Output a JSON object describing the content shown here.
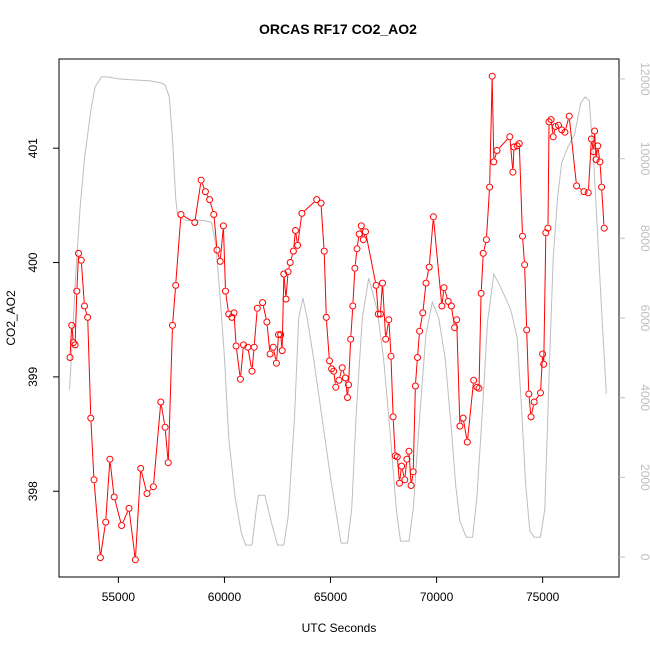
{
  "chart_data": {
    "type": "line",
    "title": "ORCAS RF17 CO2_AO2",
    "xlabel": "UTC Seconds",
    "ylabel": "CO2_AO2",
    "xlim": [
      52200,
      78600
    ],
    "ylim": [
      397.25,
      401.78
    ],
    "x_ticks": [
      55000,
      60000,
      65000,
      70000,
      75000
    ],
    "y_ticks": [
      398,
      399,
      400,
      401
    ],
    "y2lim": [
      -500,
      12500
    ],
    "y2_ticks": [
      0,
      2000,
      4000,
      6000,
      8000,
      10000,
      12000
    ],
    "grid": false,
    "legend": "none",
    "colors": {
      "primary": "#ff0000",
      "secondary": "#bebebe"
    },
    "series": [
      {
        "axis": "left",
        "points": [
          [
            52720,
            399.17
          ],
          [
            52800,
            399.45
          ],
          [
            52880,
            399.3
          ],
          [
            52960,
            399.28
          ],
          [
            53040,
            399.75
          ],
          [
            53120,
            400.08
          ],
          [
            53250,
            400.02
          ],
          [
            53400,
            399.62
          ],
          [
            53550,
            399.52
          ],
          [
            53700,
            398.64
          ],
          [
            53850,
            398.1
          ],
          [
            54150,
            397.42
          ],
          [
            54400,
            397.73
          ],
          [
            54600,
            398.28
          ],
          [
            54800,
            397.95
          ],
          [
            55150,
            397.7
          ],
          [
            55500,
            397.85
          ],
          [
            55800,
            397.4
          ],
          [
            56050,
            398.2
          ],
          [
            56350,
            397.98
          ],
          [
            56650,
            398.04
          ],
          [
            57000,
            398.78
          ],
          [
            57200,
            398.56
          ],
          [
            57350,
            398.25
          ],
          [
            57550,
            399.45
          ],
          [
            57700,
            399.8
          ],
          [
            57950,
            400.42
          ],
          [
            58600,
            400.35
          ],
          [
            58900,
            400.72
          ],
          [
            59100,
            400.62
          ],
          [
            59300,
            400.55
          ],
          [
            59500,
            400.42
          ],
          [
            59650,
            400.11
          ],
          [
            59800,
            400.01
          ],
          [
            59950,
            400.32
          ],
          [
            60050,
            399.75
          ],
          [
            60200,
            399.55
          ],
          [
            60350,
            399.52
          ],
          [
            60450,
            399.56
          ],
          [
            60550,
            399.27
          ],
          [
            60750,
            398.98
          ],
          [
            60900,
            399.28
          ],
          [
            61100,
            399.26
          ],
          [
            61300,
            399.05
          ],
          [
            61400,
            399.26
          ],
          [
            61550,
            399.6
          ],
          [
            61800,
            399.65
          ],
          [
            62000,
            399.48
          ],
          [
            62150,
            399.2
          ],
          [
            62300,
            399.26
          ],
          [
            62450,
            399.12
          ],
          [
            62550,
            399.37
          ],
          [
            62650,
            399.37
          ],
          [
            62720,
            399.23
          ],
          [
            62800,
            399.9
          ],
          [
            62900,
            399.68
          ],
          [
            63000,
            399.92
          ],
          [
            63100,
            400.0
          ],
          [
            63250,
            400.1
          ],
          [
            63350,
            400.28
          ],
          [
            63450,
            400.15
          ],
          [
            63650,
            400.43
          ],
          [
            64350,
            400.55
          ],
          [
            64550,
            400.52
          ],
          [
            64700,
            400.1
          ],
          [
            64800,
            399.52
          ],
          [
            64950,
            399.14
          ],
          [
            65050,
            399.07
          ],
          [
            65150,
            399.05
          ],
          [
            65250,
            398.91
          ],
          [
            65400,
            398.97
          ],
          [
            65550,
            399.08
          ],
          [
            65700,
            398.99
          ],
          [
            65800,
            398.82
          ],
          [
            65850,
            398.93
          ],
          [
            65950,
            399.33
          ],
          [
            66050,
            399.62
          ],
          [
            66150,
            399.95
          ],
          [
            66250,
            400.12
          ],
          [
            66350,
            400.25
          ],
          [
            66450,
            400.32
          ],
          [
            66550,
            400.2
          ],
          [
            66650,
            400.27
          ],
          [
            67150,
            399.8
          ],
          [
            67250,
            399.55
          ],
          [
            67350,
            399.55
          ],
          [
            67450,
            399.82
          ],
          [
            67600,
            399.33
          ],
          [
            67750,
            399.5
          ],
          [
            67850,
            399.18
          ],
          [
            67950,
            398.65
          ],
          [
            68050,
            398.31
          ],
          [
            68150,
            398.3
          ],
          [
            68250,
            398.07
          ],
          [
            68350,
            398.22
          ],
          [
            68500,
            398.1
          ],
          [
            68600,
            398.28
          ],
          [
            68700,
            398.35
          ],
          [
            68800,
            398.05
          ],
          [
            68900,
            398.17
          ],
          [
            69000,
            398.92
          ],
          [
            69100,
            399.17
          ],
          [
            69200,
            399.4
          ],
          [
            69350,
            399.56
          ],
          [
            69500,
            399.82
          ],
          [
            69650,
            399.96
          ],
          [
            69850,
            400.4
          ],
          [
            70250,
            399.62
          ],
          [
            70350,
            399.78
          ],
          [
            70550,
            399.66
          ],
          [
            70700,
            399.62
          ],
          [
            70850,
            399.43
          ],
          [
            70950,
            399.5
          ],
          [
            71100,
            398.57
          ],
          [
            71250,
            398.64
          ],
          [
            71450,
            398.43
          ],
          [
            71750,
            398.97
          ],
          [
            71900,
            398.91
          ],
          [
            72000,
            398.9
          ],
          [
            72100,
            399.73
          ],
          [
            72200,
            400.08
          ],
          [
            72350,
            400.2
          ],
          [
            72500,
            400.66
          ],
          [
            72620,
            401.63
          ],
          [
            72700,
            400.88
          ],
          [
            72850,
            400.98
          ],
          [
            73450,
            401.1
          ],
          [
            73600,
            400.79
          ],
          [
            73650,
            401.01
          ],
          [
            73800,
            401.02
          ],
          [
            73900,
            401.04
          ],
          [
            74050,
            400.23
          ],
          [
            74150,
            399.98
          ],
          [
            74250,
            399.41
          ],
          [
            74350,
            398.85
          ],
          [
            74450,
            398.65
          ],
          [
            74600,
            398.78
          ],
          [
            74900,
            398.86
          ],
          [
            75000,
            399.2
          ],
          [
            75050,
            399.11
          ],
          [
            75150,
            400.26
          ],
          [
            75250,
            400.3
          ],
          [
            75300,
            401.23
          ],
          [
            75400,
            401.25
          ],
          [
            75500,
            401.1
          ],
          [
            75600,
            401.19
          ],
          [
            75750,
            401.2
          ],
          [
            75900,
            401.16
          ],
          [
            76050,
            401.14
          ],
          [
            76250,
            401.28
          ],
          [
            76600,
            400.67
          ],
          [
            76950,
            400.62
          ],
          [
            77150,
            400.61
          ],
          [
            77300,
            401.08
          ],
          [
            77400,
            400.97
          ],
          [
            77450,
            401.15
          ],
          [
            77520,
            400.9
          ],
          [
            77600,
            401.02
          ],
          [
            77700,
            400.88
          ],
          [
            77780,
            400.66
          ],
          [
            77900,
            400.3
          ]
        ]
      },
      {
        "axis": "right",
        "points": [
          [
            52700,
            4200
          ],
          [
            52850,
            5700
          ],
          [
            53000,
            7200
          ],
          [
            53200,
            8800
          ],
          [
            53400,
            10000
          ],
          [
            53700,
            11200
          ],
          [
            53900,
            11800
          ],
          [
            54200,
            12050
          ],
          [
            54500,
            12050
          ],
          [
            55000,
            12000
          ],
          [
            56500,
            11950
          ],
          [
            57000,
            11900
          ],
          [
            57200,
            11850
          ],
          [
            57400,
            11550
          ],
          [
            57550,
            10500
          ],
          [
            57700,
            9000
          ],
          [
            57800,
            8550
          ],
          [
            58200,
            8450
          ],
          [
            59000,
            8450
          ],
          [
            59400,
            8400
          ],
          [
            59600,
            7800
          ],
          [
            59800,
            6500
          ],
          [
            60000,
            5000
          ],
          [
            60200,
            3000
          ],
          [
            60500,
            1500
          ],
          [
            60800,
            600
          ],
          [
            61000,
            300
          ],
          [
            61300,
            300
          ],
          [
            61500,
            1200
          ],
          [
            61600,
            1550
          ],
          [
            61900,
            1550
          ],
          [
            62200,
            900
          ],
          [
            62500,
            300
          ],
          [
            62800,
            300
          ],
          [
            63000,
            1000
          ],
          [
            63300,
            3500
          ],
          [
            63500,
            6000
          ],
          [
            63700,
            6500
          ],
          [
            63900,
            6000
          ],
          [
            64200,
            5000
          ],
          [
            64600,
            3500
          ],
          [
            65000,
            2000
          ],
          [
            65300,
            1000
          ],
          [
            65500,
            350
          ],
          [
            65800,
            350
          ],
          [
            66000,
            1200
          ],
          [
            66200,
            3500
          ],
          [
            66500,
            6000
          ],
          [
            66800,
            7000
          ],
          [
            67200,
            6200
          ],
          [
            67500,
            5000
          ],
          [
            67800,
            3200
          ],
          [
            68100,
            1200
          ],
          [
            68300,
            400
          ],
          [
            68700,
            400
          ],
          [
            68900,
            1200
          ],
          [
            69200,
            3500
          ],
          [
            69500,
            5600
          ],
          [
            69800,
            6400
          ],
          [
            70100,
            6000
          ],
          [
            70400,
            5000
          ],
          [
            70700,
            3200
          ],
          [
            70900,
            1800
          ],
          [
            71100,
            900
          ],
          [
            71400,
            500
          ],
          [
            71700,
            500
          ],
          [
            71900,
            1500
          ],
          [
            72200,
            4000
          ],
          [
            72400,
            5900
          ],
          [
            72700,
            7100
          ],
          [
            73000,
            6800
          ],
          [
            73500,
            6200
          ],
          [
            73800,
            5500
          ],
          [
            74000,
            3800
          ],
          [
            74200,
            1800
          ],
          [
            74400,
            650
          ],
          [
            74600,
            500
          ],
          [
            74900,
            500
          ],
          [
            75100,
            1200
          ],
          [
            75300,
            4500
          ],
          [
            75500,
            7500
          ],
          [
            75700,
            9000
          ],
          [
            75900,
            9900
          ],
          [
            76200,
            10300
          ],
          [
            76500,
            10600
          ],
          [
            76800,
            11400
          ],
          [
            77000,
            11550
          ],
          [
            77200,
            11450
          ],
          [
            77400,
            10000
          ],
          [
            77600,
            8000
          ],
          [
            77800,
            6000
          ],
          [
            78000,
            4100
          ]
        ]
      }
    ]
  }
}
